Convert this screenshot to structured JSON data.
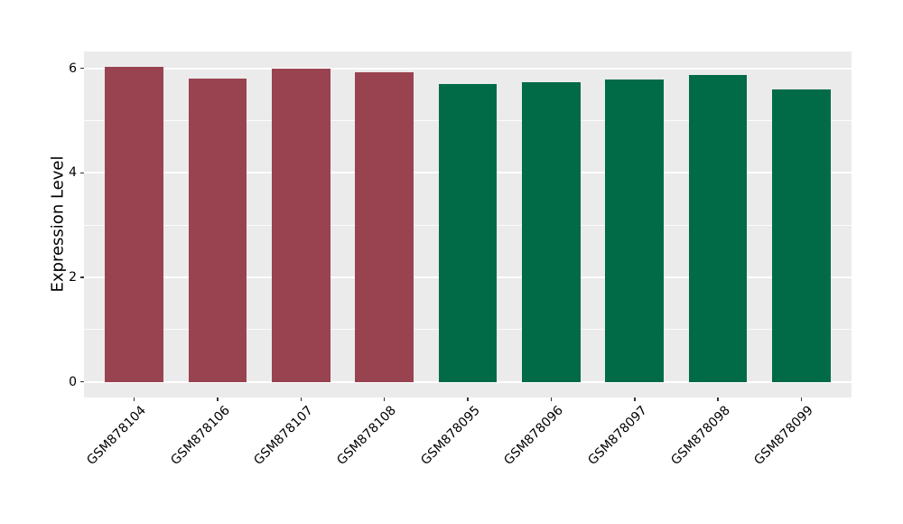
{
  "chart_data": {
    "type": "bar",
    "title": "",
    "xlabel": "",
    "ylabel": "Expression Level",
    "categories": [
      "GSM878104",
      "GSM878106",
      "GSM878107",
      "GSM878108",
      "GSM878095",
      "GSM878096",
      "GSM878097",
      "GSM878098",
      "GSM878099"
    ],
    "values": [
      6.02,
      5.8,
      6.0,
      5.93,
      5.7,
      5.73,
      5.78,
      5.87,
      5.6
    ],
    "bar_colors": [
      "#9A4350",
      "#9A4350",
      "#9A4350",
      "#9A4350",
      "#006B46",
      "#006B46",
      "#006B46",
      "#006B46",
      "#006B46"
    ],
    "groups": [
      {
        "name": "maroon-group",
        "color": "#9A4350",
        "categories": [
          "GSM878104",
          "GSM878106",
          "GSM878107",
          "GSM878108"
        ]
      },
      {
        "name": "green-group",
        "color": "#006B46",
        "categories": [
          "GSM878095",
          "GSM878096",
          "GSM878097",
          "GSM878098",
          "GSM878099"
        ]
      }
    ],
    "ylim": [
      0,
      6
    ],
    "yticks": [
      0,
      2,
      4,
      6
    ],
    "yticks_minor": [
      1,
      3,
      5
    ],
    "grid": "on",
    "legend": "none",
    "panel_bg": "#EBEBEB",
    "grid_color": "#FFFFFF",
    "tick_color": "#333333",
    "text_color": "#000000",
    "bar_width_frac": 0.7
  }
}
